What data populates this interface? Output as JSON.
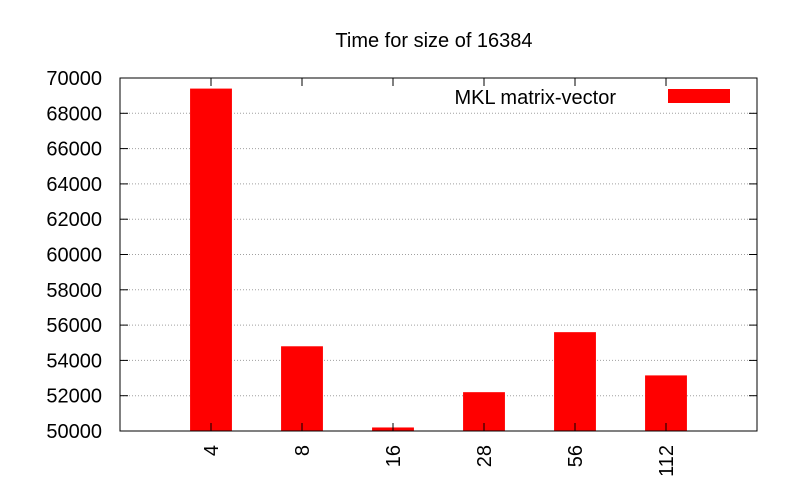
{
  "chart_data": {
    "type": "bar",
    "title": "Time for size of 16384",
    "xlabel": "",
    "ylabel": "",
    "categories": [
      "4",
      "8",
      "16",
      "28",
      "56",
      "112"
    ],
    "series": [
      {
        "name": "MKL matrix-vector",
        "values": [
          69400,
          54800,
          50200,
          52200,
          55600,
          53150
        ],
        "color": "#ff0000"
      }
    ],
    "ylim": [
      50000,
      70000
    ],
    "yticks": [
      "50000",
      "52000",
      "54000",
      "56000",
      "58000",
      "60000",
      "62000",
      "64000",
      "66000",
      "68000",
      "70000"
    ],
    "grid": "horizontal-dotted",
    "legend_position": "top-right"
  }
}
